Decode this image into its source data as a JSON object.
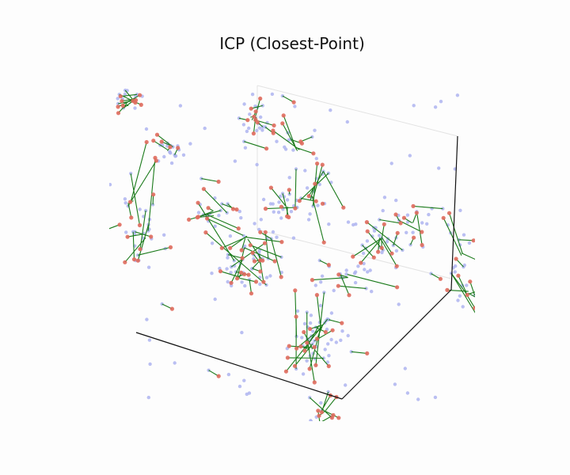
{
  "chart_data": {
    "type": "scatter",
    "title": "ICP (Closest-Point)",
    "projection": "3d",
    "axes_visible": false,
    "colors": {
      "source": "#e06b5e",
      "target": "#aeb4f0",
      "correspondence": "#1a7a1a",
      "box_edge": "#111111",
      "box_back": "#e3e3e3"
    }
  }
}
